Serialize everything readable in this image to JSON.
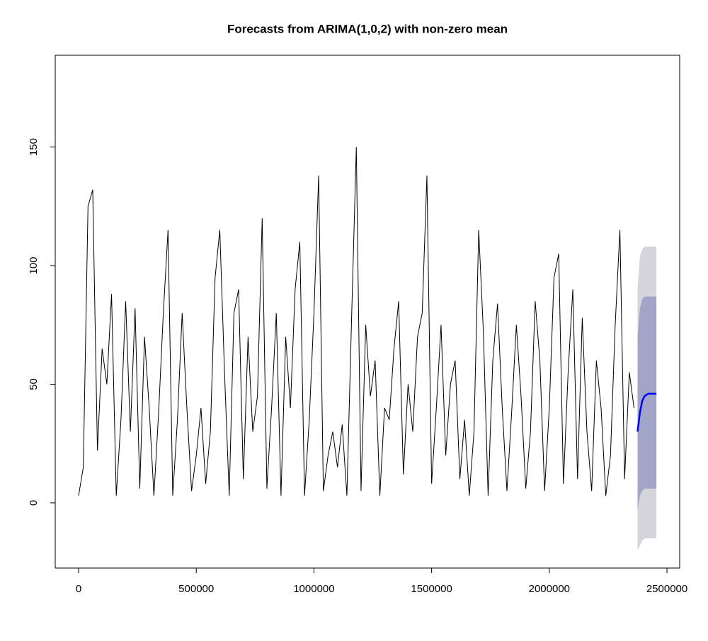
{
  "chart_data": {
    "type": "line",
    "title": "Forecasts from ARIMA(1,0,2) with non-zero mean",
    "x": [
      0,
      20000,
      40000,
      60000,
      80000,
      100000,
      120000,
      140000,
      160000,
      180000,
      200000,
      220000,
      240000,
      260000,
      280000,
      300000,
      320000,
      340000,
      360000,
      380000,
      400000,
      420000,
      440000,
      460000,
      480000,
      500000,
      520000,
      540000,
      560000,
      580000,
      600000,
      620000,
      640000,
      660000,
      680000,
      700000,
      720000,
      740000,
      760000,
      780000,
      800000,
      820000,
      840000,
      860000,
      880000,
      900000,
      920000,
      940000,
      960000,
      980000,
      1000000,
      1020000,
      1040000,
      1060000,
      1080000,
      1100000,
      1120000,
      1140000,
      1160000,
      1180000,
      1200000,
      1220000,
      1240000,
      1260000,
      1280000,
      1300000,
      1320000,
      1340000,
      1360000,
      1380000,
      1400000,
      1420000,
      1440000,
      1460000,
      1480000,
      1500000,
      1520000,
      1540000,
      1560000,
      1580000,
      1600000,
      1620000,
      1640000,
      1660000,
      1680000,
      1700000,
      1720000,
      1740000,
      1760000,
      1780000,
      1800000,
      1820000,
      1840000,
      1860000,
      1880000,
      1900000,
      1920000,
      1940000,
      1960000,
      1980000,
      2000000,
      2020000,
      2040000,
      2060000,
      2080000,
      2100000,
      2120000,
      2140000,
      2160000,
      2180000,
      2200000,
      2220000,
      2240000,
      2260000,
      2280000,
      2300000,
      2320000,
      2340000,
      2360000
    ],
    "values": [
      3,
      15,
      125,
      132,
      22,
      65,
      50,
      88,
      3,
      35,
      85,
      30,
      82,
      6,
      70,
      40,
      3,
      38,
      80,
      115,
      3,
      35,
      80,
      40,
      5,
      20,
      40,
      8,
      30,
      95,
      115,
      55,
      3,
      80,
      90,
      10,
      70,
      30,
      45,
      120,
      6,
      40,
      80,
      3,
      70,
      40,
      90,
      110,
      3,
      35,
      80,
      138,
      5,
      20,
      30,
      15,
      33,
      3,
      78,
      150,
      5,
      75,
      45,
      60,
      3,
      40,
      35,
      65,
      85,
      12,
      50,
      30,
      70,
      80,
      138,
      8,
      40,
      75,
      20,
      50,
      60,
      10,
      35,
      3,
      30,
      115,
      72,
      3,
      60,
      84,
      40,
      5,
      38,
      75,
      45,
      6,
      30,
      85,
      60,
      5,
      40,
      95,
      105,
      8,
      55,
      90,
      10,
      78,
      30,
      5,
      60,
      40,
      3,
      20,
      75,
      115,
      10,
      55,
      40
    ],
    "color": "#000000",
    "forecast": {
      "x": [
        2375000,
        2385000,
        2395000,
        2405000,
        2420000,
        2440000,
        2455000
      ],
      "mean": [
        30,
        38,
        43,
        45,
        46,
        46,
        46
      ],
      "lo80": [
        -3,
        3,
        5,
        6,
        6,
        6,
        6
      ],
      "hi80": [
        70,
        82,
        86,
        87,
        87,
        87,
        87
      ],
      "lo95": [
        -20,
        -18,
        -16,
        -15,
        -15,
        -15,
        -15
      ],
      "hi95": [
        90,
        104,
        107,
        108,
        108,
        108,
        108
      ],
      "mean_color": "#0000ff",
      "band80_color": "#a1a6c8",
      "band95_color": "#d5d5db"
    },
    "xlim": [
      -99300,
      2554000
    ],
    "ylim": [
      -27.5,
      188.7
    ],
    "xticks": [
      0,
      500000,
      1000000,
      1500000,
      2000000,
      2500000
    ],
    "yticks": [
      0,
      50,
      100,
      150
    ]
  }
}
